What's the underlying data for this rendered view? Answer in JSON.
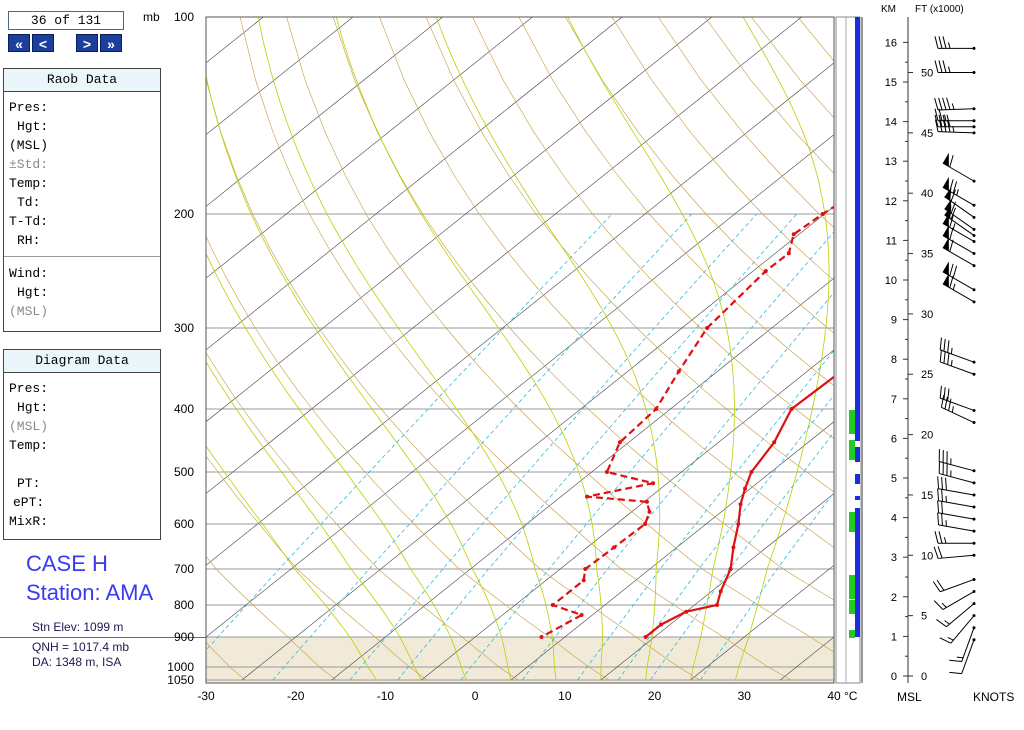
{
  "header": {
    "counter": "36 of 131",
    "unit_mb": "mb",
    "nav": [
      "«",
      "<",
      ">",
      "»"
    ]
  },
  "raob_panel": {
    "title": "Raob Data",
    "rows": [
      "Pres:",
      "Hgt:",
      "(MSL)",
      "±Std:",
      "Temp:",
      "Td:",
      "T-Td:",
      "RH:"
    ],
    "wind_rows": [
      "Wind:",
      "Hgt:",
      "(MSL)"
    ]
  },
  "diagram_panel": {
    "title": "Diagram Data",
    "rows": [
      "Pres:",
      "Hgt:",
      "(MSL)",
      "Temp:",
      "",
      "PT:",
      "ePT:",
      "MixR:"
    ]
  },
  "case": {
    "line1": "CASE H",
    "line2": "Station: AMA"
  },
  "station": {
    "elev": "Stn Elev: 1099 m",
    "qnh": "QNH = 1017.4 mb",
    "da": "DA: 1348 m, ISA"
  },
  "wind_axes": {
    "km_label": "KM",
    "ft_label": "FT (x1000)",
    "msl_label": "MSL",
    "knots_label": "KNOTS",
    "km_ticks": [
      "0",
      "1",
      "2",
      "3",
      "4",
      "5",
      "6",
      "7",
      "8",
      "9",
      "10",
      "11",
      "12",
      "13",
      "14",
      "15",
      "16"
    ],
    "ft_ticks": [
      "0",
      "5",
      "10",
      "15",
      "20",
      "25",
      "30",
      "35",
      "40",
      "45",
      "50"
    ]
  },
  "colors": {
    "temp": "#e01010",
    "dewpoint": "#e01010",
    "isotherm": "#444444",
    "dry_adiabat": "#c89a3c",
    "moist_adiabat": "#b8d000",
    "mixing_ratio": "#30b8d8",
    "ground_fill": "#f2ead8",
    "column_blue": "#1a2ee0",
    "column_green": "#22cc22",
    "case_text": "#3a3af0"
  },
  "chart_data": {
    "type": "line",
    "title": "",
    "xlabel": "°C",
    "ylabel": "mb",
    "xlim": [
      -30,
      40
    ],
    "x_ticks": [
      -30,
      -20,
      -10,
      0,
      10,
      20,
      30,
      40
    ],
    "y_ticks": [
      100,
      200,
      300,
      400,
      500,
      600,
      700,
      800,
      900,
      1000,
      1050
    ],
    "surface_pressure": 900,
    "grid": true,
    "series": [
      {
        "role": "temperature",
        "style": "solid",
        "points": [
          [
            100,
            7.2
          ],
          [
            150,
            6.5
          ],
          [
            180,
            4.5
          ],
          [
            200,
            3.9
          ],
          [
            215,
            3.8
          ],
          [
            230,
            4.5
          ],
          [
            245,
            4.0
          ],
          [
            300,
            4.1
          ],
          [
            350,
            3.8
          ],
          [
            400,
            3.5
          ],
          [
            450,
            6.2
          ],
          [
            500,
            7.8
          ],
          [
            530,
            9.4
          ],
          [
            560,
            11.1
          ],
          [
            600,
            13.6
          ],
          [
            650,
            16.3
          ],
          [
            700,
            19.0
          ],
          [
            760,
            21.0
          ],
          [
            800,
            22.5
          ],
          [
            820,
            20.0
          ],
          [
            860,
            19.0
          ],
          [
            900,
            19.0
          ]
        ]
      },
      {
        "role": "dewpoint",
        "style": "dashed",
        "points": [
          [
            100,
            -14.4
          ],
          [
            150,
            -16.2
          ],
          [
            180,
            -19.1
          ],
          [
            200,
            -20.2
          ],
          [
            215,
            -20.6
          ],
          [
            230,
            -18.5
          ],
          [
            245,
            -18.6
          ],
          [
            300,
            -17.2
          ],
          [
            350,
            -14.3
          ],
          [
            400,
            -11.6
          ],
          [
            450,
            -11.0
          ],
          [
            500,
            -8.3
          ],
          [
            520,
            -1.6
          ],
          [
            545,
            -7.1
          ],
          [
            555,
            0.3
          ],
          [
            575,
            2.0
          ],
          [
            600,
            3.2
          ],
          [
            650,
            3.0
          ],
          [
            700,
            2.8
          ],
          [
            730,
            4.2
          ],
          [
            800,
            4.2
          ],
          [
            830,
            8.8
          ],
          [
            900,
            7.4
          ]
        ]
      }
    ],
    "wind_barbs": [
      [
        52,
        270,
        35
      ],
      [
        50,
        270,
        35
      ],
      [
        47,
        268,
        45
      ],
      [
        46,
        270,
        25
      ],
      [
        45.5,
        270,
        40
      ],
      [
        45,
        272,
        45
      ],
      [
        41,
        300,
        60
      ],
      [
        39,
        300,
        75
      ],
      [
        38,
        305,
        60
      ],
      [
        37,
        305,
        60
      ],
      [
        36.5,
        305,
        60
      ],
      [
        36,
        300,
        65
      ],
      [
        35,
        300,
        60
      ],
      [
        34,
        300,
        60
      ],
      [
        32,
        300,
        70
      ],
      [
        31,
        300,
        65
      ],
      [
        26,
        290,
        35
      ],
      [
        25,
        290,
        35
      ],
      [
        22,
        290,
        30
      ],
      [
        21,
        295,
        35
      ],
      [
        17,
        285,
        35
      ],
      [
        16,
        285,
        35
      ],
      [
        15,
        280,
        30
      ],
      [
        14,
        280,
        25
      ],
      [
        13,
        280,
        20
      ],
      [
        12,
        280,
        25
      ],
      [
        11,
        270,
        25
      ],
      [
        10,
        265,
        20
      ],
      [
        8,
        250,
        20
      ],
      [
        7,
        240,
        15
      ],
      [
        6,
        230,
        15
      ],
      [
        5,
        220,
        15
      ],
      [
        4,
        200,
        15
      ],
      [
        3,
        200,
        10
      ]
    ],
    "wind_units": "KNOTS",
    "wind_height_units": "ft x1000 MSL"
  }
}
